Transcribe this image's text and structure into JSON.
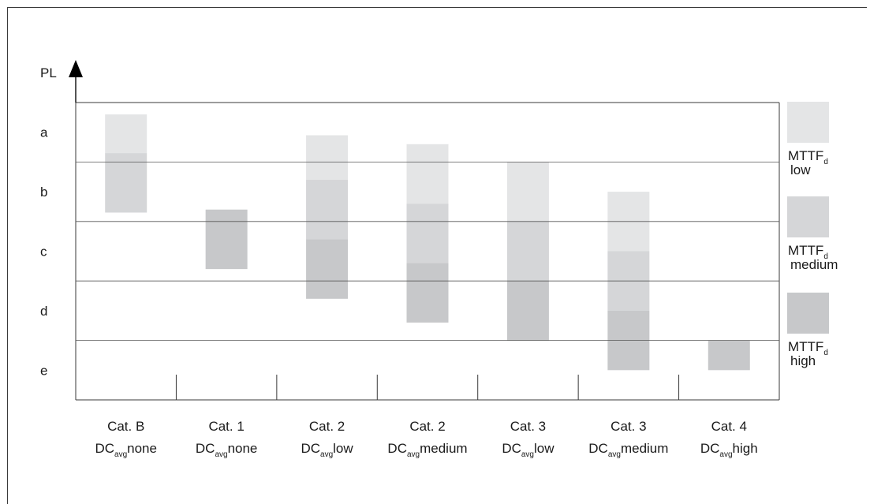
{
  "chart_data": {
    "type": "bar",
    "title": "",
    "ylabel": "PL",
    "xlabel": "",
    "y_levels": [
      "a",
      "b",
      "c",
      "d",
      "e"
    ],
    "categories": [
      {
        "cat": "Cat. B",
        "dc_prefix": "DC",
        "dc_sub": "avg",
        "dc_level": "none"
      },
      {
        "cat": "Cat. 1",
        "dc_prefix": "DC",
        "dc_sub": "avg",
        "dc_level": "none"
      },
      {
        "cat": "Cat. 2",
        "dc_prefix": "DC",
        "dc_sub": "avg",
        "dc_level": "low"
      },
      {
        "cat": "Cat. 2",
        "dc_prefix": "DC",
        "dc_sub": "avg",
        "dc_level": "medium"
      },
      {
        "cat": "Cat. 3",
        "dc_prefix": "DC",
        "dc_sub": "avg",
        "dc_level": "low"
      },
      {
        "cat": "Cat. 3",
        "dc_prefix": "DC",
        "dc_sub": "avg",
        "dc_level": "medium"
      },
      {
        "cat": "Cat. 4",
        "dc_prefix": "DC",
        "dc_sub": "avg",
        "dc_level": "high"
      }
    ],
    "series": [
      {
        "name": "low",
        "color": "#e4e5e6",
        "ranges": [
          [
            0.2,
            0.85
          ],
          null,
          [
            0.55,
            1.3
          ],
          [
            0.7,
            1.7
          ],
          [
            1.0,
            2.0
          ],
          [
            1.5,
            2.5
          ],
          null
        ]
      },
      {
        "name": "medium",
        "color": "#d5d6d8",
        "ranges": [
          [
            0.85,
            1.85
          ],
          null,
          [
            1.3,
            2.3
          ],
          [
            1.7,
            2.7
          ],
          [
            2.0,
            3.0
          ],
          [
            2.5,
            3.5
          ],
          null
        ]
      },
      {
        "name": "high",
        "color": "#c7c8ca",
        "ranges": [
          null,
          [
            1.8,
            2.8
          ],
          [
            2.3,
            3.3
          ],
          [
            2.7,
            3.7
          ],
          [
            3.0,
            4.0
          ],
          [
            3.5,
            4.5
          ],
          [
            4.0,
            4.5
          ]
        ]
      }
    ],
    "ylim": [
      0,
      5
    ],
    "grid": true,
    "legend_position": "right",
    "legend": [
      {
        "key": "low",
        "label_main": "MTTF",
        "label_sub": "d",
        "label_level": "low"
      },
      {
        "key": "medium",
        "label_main": "MTTF",
        "label_sub": "d",
        "label_level": "medium"
      },
      {
        "key": "high",
        "label_main": "MTTF",
        "label_sub": "d",
        "label_level": "high"
      }
    ]
  }
}
